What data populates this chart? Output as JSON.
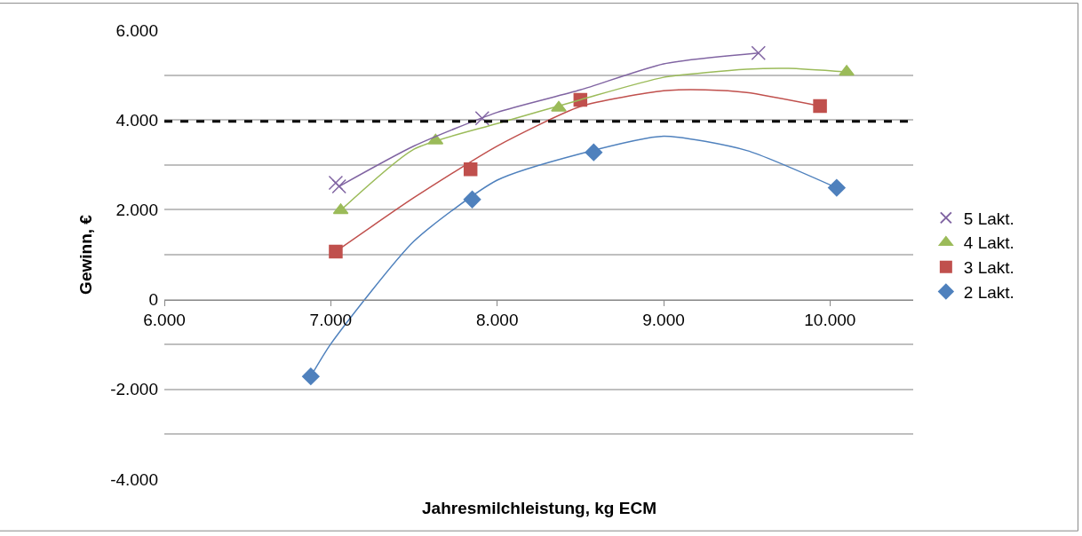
{
  "chart_data": {
    "type": "scatter",
    "xlabel": "Jahresmilchleistung, kg ECM",
    "ylabel": "Gewinn, €",
    "xlim": [
      6000,
      10500
    ],
    "xticks": [
      {
        "value": 6000,
        "label": "6.000"
      },
      {
        "value": 7000,
        "label": "7.000"
      },
      {
        "value": 8000,
        "label": "8.000"
      },
      {
        "value": 9000,
        "label": "9.000"
      },
      {
        "value": 10000,
        "label": "10.000"
      }
    ],
    "ylim": [
      -4000,
      6000
    ],
    "yticks": [
      {
        "value": -4000,
        "label": "-4.000"
      },
      {
        "value": -3000,
        "label": null
      },
      {
        "value": -2000,
        "label": "-2.000"
      },
      {
        "value": -1000,
        "label": null
      },
      {
        "value": 0,
        "label": "0"
      },
      {
        "value": 1000,
        "label": null
      },
      {
        "value": 2000,
        "label": "2.000"
      },
      {
        "value": 3000,
        "label": null
      },
      {
        "value": 4000,
        "label": "4.000"
      },
      {
        "value": 5000,
        "label": null
      },
      {
        "value": 6000,
        "label": "6.000"
      }
    ],
    "grid": "y",
    "legend": "right",
    "ref_lines": [
      {
        "axis": "y",
        "value": 3970,
        "color": "#000000",
        "line_style": "dashed"
      }
    ],
    "series": [
      {
        "name": "5 Lakt.",
        "color": "#8064a2",
        "marker": "cross",
        "x": [
          7030,
          7050,
          7910,
          9570
        ],
        "values": [
          2600,
          2520,
          4040,
          5490
        ]
      },
      {
        "name": "4 Lakt.",
        "color": "#9bbb59",
        "marker": "triangle",
        "x": [
          7060,
          7630,
          8370,
          10100
        ],
        "values": [
          1990,
          3540,
          4270,
          5070
        ]
      },
      {
        "name": "3 Lakt.",
        "color": "#c0504d",
        "marker": "square",
        "x": [
          7030,
          7840,
          8500,
          9940
        ],
        "values": [
          1070,
          2900,
          4450,
          4310
        ]
      },
      {
        "name": "2 Lakt.",
        "color": "#4f81bd",
        "marker": "diamond",
        "x": [
          6880,
          7850,
          8580,
          10040
        ],
        "values": [
          -1710,
          2230,
          3280,
          2490
        ]
      },
      {
        "type": "line",
        "color": "#8064a2",
        "marker": "none",
        "x": [
          7050,
          7500,
          8000,
          8500,
          9000,
          9570
        ],
        "values": [
          2520,
          3420,
          4170,
          4670,
          5250,
          5490
        ]
      },
      {
        "type": "line",
        "color": "#9bbb59",
        "marker": "none",
        "x": [
          7060,
          7500,
          8000,
          8500,
          9000,
          9500,
          9750,
          10100
        ],
        "values": [
          1990,
          3350,
          3920,
          4450,
          4950,
          5130,
          5150,
          5070
        ]
      },
      {
        "type": "line",
        "color": "#c0504d",
        "marker": "none",
        "x": [
          7030,
          7500,
          8000,
          8500,
          9000,
          9250,
          9500,
          9940
        ],
        "values": [
          1070,
          2270,
          3420,
          4300,
          4650,
          4670,
          4610,
          4310
        ]
      },
      {
        "type": "line",
        "color": "#4f81bd",
        "marker": "none",
        "x": [
          6880,
          7000,
          7500,
          8000,
          8500,
          9000,
          9500,
          10040
        ],
        "values": [
          -1710,
          -990,
          1300,
          2660,
          3250,
          3640,
          3320,
          2490
        ]
      }
    ]
  }
}
